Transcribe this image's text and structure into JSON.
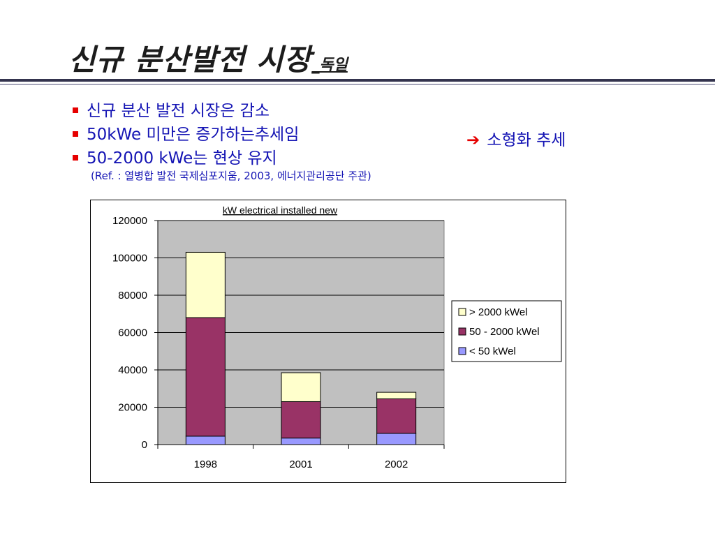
{
  "slide": {
    "title": "신규 분산발전 시장",
    "title_suffix": "_독일",
    "bullets": [
      "신규 분산 발전 시장은 감소",
      "50kWe 미만은 증가하는추세임",
      "50-2000 kWe는 현상 유지"
    ],
    "reference": "(Ref. : 열병합 발전 국제심포지움, 2003, 에너지관리공단 주관)",
    "trend_note": "소형화 추세"
  },
  "colors": {
    "bullet_text": "#1414b4",
    "bullet_marker": "#e60000",
    "plot_area": "#c0c0c0",
    "series_lt50": "#9999ff",
    "series_50_2000": "#993366",
    "series_gt2000": "#ffffcc"
  },
  "chart_data": {
    "type": "bar",
    "stacked": true,
    "title": "kW electrical installed new",
    "categories": [
      "1998",
      "2001",
      "2002"
    ],
    "series": [
      {
        "name": "< 50 kWel",
        "color": "#9999ff",
        "values": [
          4500,
          3500,
          6000
        ]
      },
      {
        "name": "50 - 2000 kWel",
        "color": "#993366",
        "values": [
          63500,
          19500,
          18500
        ]
      },
      {
        "name": "> 2000 kWel",
        "color": "#ffffcc",
        "values": [
          35000,
          15500,
          3500
        ]
      }
    ],
    "legend_order": [
      "> 2000 kWel",
      "50 - 2000 kWel",
      "< 50 kWel"
    ],
    "ylim": [
      0,
      120000
    ],
    "yticks": [
      "0",
      "20000",
      "40000",
      "60000",
      "80000",
      "100000",
      "120000"
    ],
    "xlabel": "",
    "ylabel": "",
    "grid": true,
    "legend_position": "right"
  }
}
